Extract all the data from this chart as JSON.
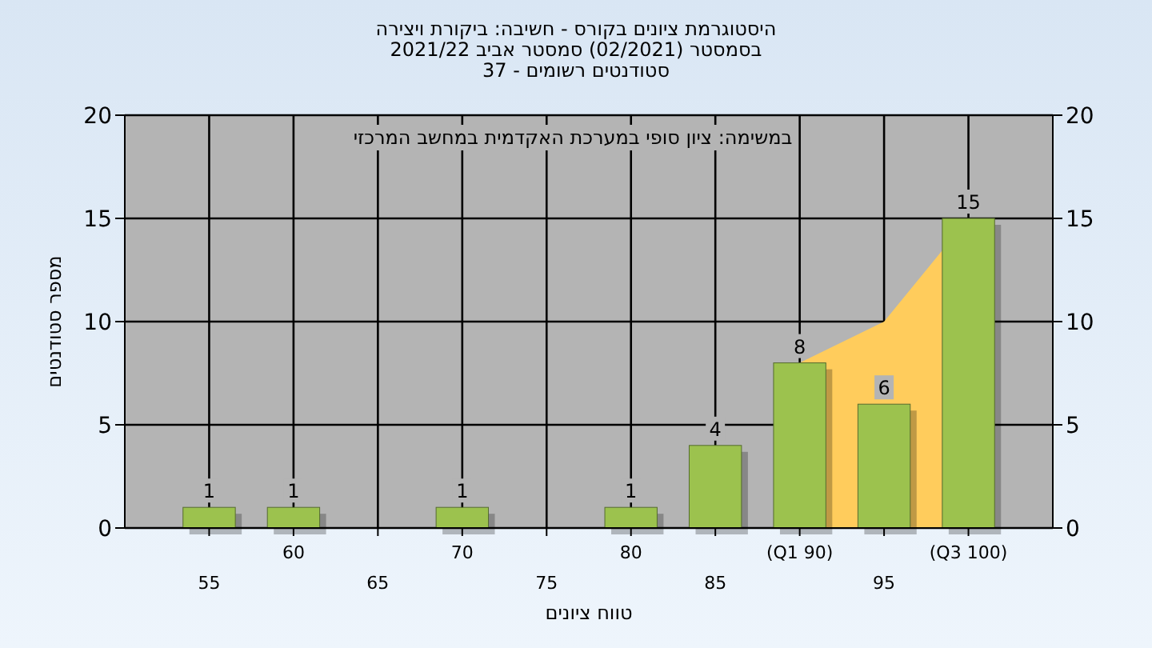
{
  "chart_data": {
    "type": "bar",
    "title": "היסטוגרמת ציונים בקורס - חשיבה: ביקורת ויצירה",
    "subtitle": "בסמסטר  (02/2021)  סמסטר אביב 2021/22\nסטודנטים רשומים - 37",
    "xlabel": "טווח ציונים",
    "ylabel": "מספר סטודנטים",
    "annotations": [
      "במשימה: ציון סופי במערכת האקדמית במחשב המרכזי"
    ],
    "categories": [
      "55",
      "60",
      "65",
      "70",
      "75",
      "80",
      "85",
      "(Q1 90)",
      "95",
      "(Q3 100)"
    ],
    "series": [
      {
        "type": "area",
        "color": "#ffcc5c",
        "values": [
          null,
          null,
          null,
          null,
          null,
          null,
          null,
          8,
          10,
          15
        ]
      },
      {
        "color": "#9cc24e",
        "values": [
          1,
          1,
          0,
          1,
          0,
          1,
          4,
          8,
          6,
          15
        ],
        "value_labels": [
          "1",
          "1",
          null,
          "1",
          null,
          "1",
          "4",
          "8",
          "6",
          "15"
        ]
      }
    ],
    "ylim": [
      0,
      20
    ],
    "yticks": [
      0,
      5,
      10,
      15,
      20
    ],
    "y2lim": [
      0,
      20
    ],
    "y2ticks": [
      0,
      5,
      10,
      15,
      20
    ],
    "grid": true
  }
}
